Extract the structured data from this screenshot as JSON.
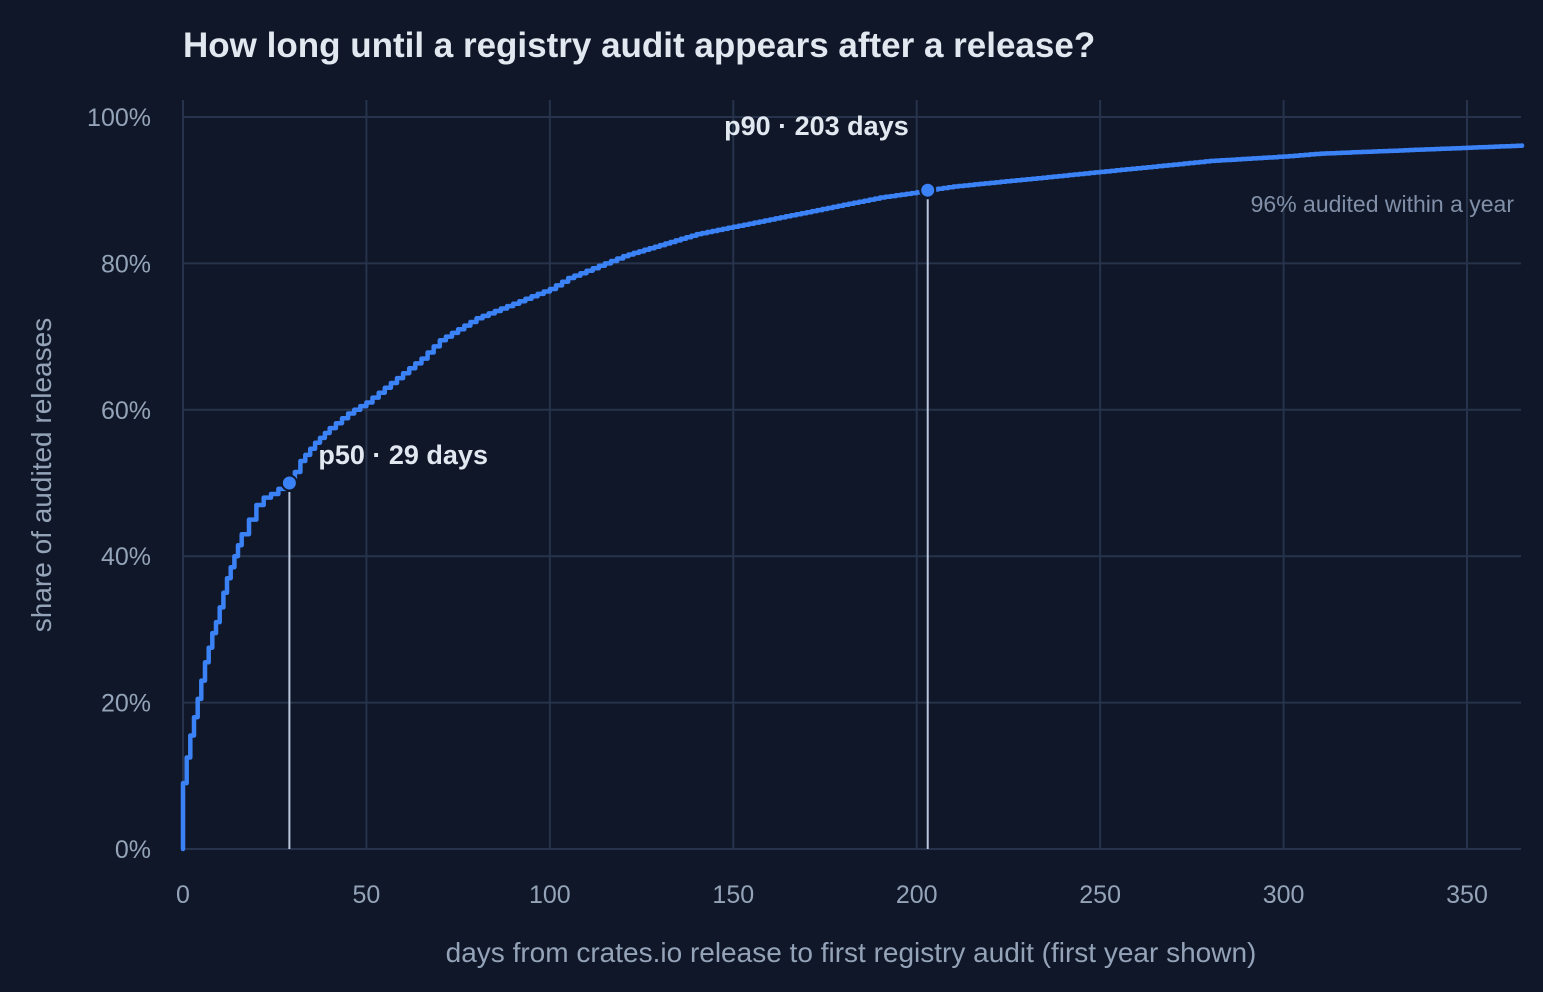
{
  "chart_data": {
    "type": "line",
    "title": "How long until a registry audit appears after a release?",
    "xlabel": "days from crates.io release to first registry audit (first year shown)",
    "ylabel": "share of audited releases",
    "xlim": [
      0,
      365
    ],
    "ylim": [
      0,
      100
    ],
    "x_ticks": [
      0,
      50,
      100,
      150,
      200,
      250,
      300,
      350
    ],
    "x_tick_labels": [
      "0",
      "50",
      "100",
      "150",
      "200",
      "250",
      "300",
      "350"
    ],
    "y_ticks": [
      0,
      20,
      40,
      60,
      80,
      100
    ],
    "y_tick_labels": [
      "0%",
      "20%",
      "40%",
      "60%",
      "80%",
      "100%"
    ],
    "grid": true,
    "line_color": "#3b82f6",
    "series": [
      {
        "x": [
          0,
          1,
          2,
          3,
          4,
          5,
          6,
          7,
          8,
          9,
          10,
          11,
          12,
          13,
          14,
          15,
          16,
          18,
          20,
          22,
          24,
          26,
          28,
          29,
          32,
          36,
          40,
          45,
          50,
          55,
          60,
          65,
          70,
          75,
          80,
          85,
          90,
          95,
          100,
          105,
          110,
          115,
          120,
          130,
          140,
          150,
          160,
          170,
          180,
          190,
          200,
          203,
          210,
          220,
          230,
          240,
          250,
          260,
          270,
          280,
          290,
          300,
          310,
          320,
          330,
          340,
          350,
          365
        ],
        "y": [
          9,
          12.5,
          15.5,
          18,
          20.5,
          23,
          25.5,
          27.5,
          29.5,
          31,
          33,
          35,
          37,
          38.5,
          40,
          41.5,
          43,
          45,
          47,
          48,
          48.5,
          49.2,
          49.8,
          50,
          53,
          55.5,
          57.5,
          59.5,
          61,
          63,
          65,
          67,
          69.5,
          71,
          72.5,
          73.5,
          74.5,
          75.5,
          76.5,
          78,
          79,
          80,
          81,
          82.5,
          84,
          85,
          86,
          87,
          88,
          89,
          89.7,
          90,
          90.5,
          91,
          91.5,
          92,
          92.5,
          93,
          93.5,
          94,
          94.3,
          94.6,
          95,
          95.2,
          95.4,
          95.6,
          95.8,
          96.1
        ]
      }
    ],
    "annotations": [
      {
        "label": "p50 · 29 days",
        "x": 29,
        "y": 50
      },
      {
        "label": "p90 · 203 days",
        "x": 203,
        "y": 90
      }
    ],
    "note": "96% audited within a year"
  }
}
